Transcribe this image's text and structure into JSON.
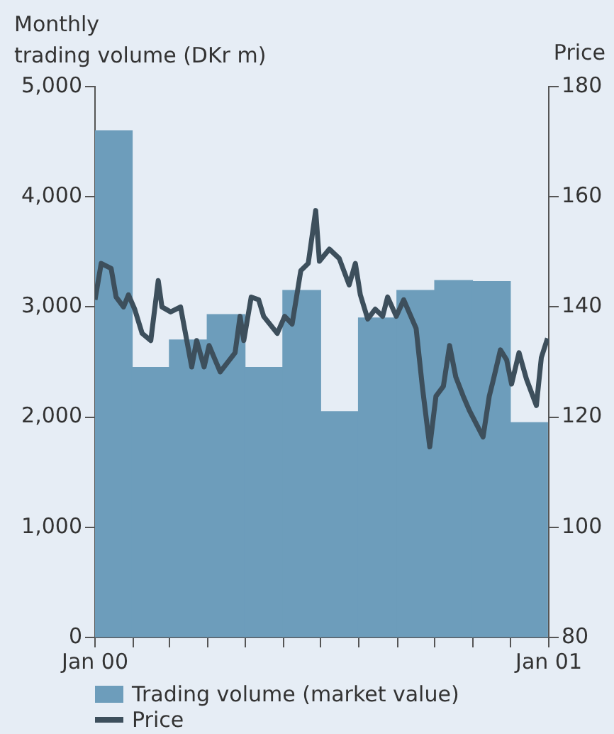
{
  "chart_data": {
    "type": "bar",
    "ylabel": "Monthly\ntrading volume (DKr m)",
    "y2label": "Price",
    "series": [
      {
        "name": "Trading volume (market value)",
        "color": "#6d9dbb",
        "x": [
          "2000-01-16",
          "2000-02-15",
          "2000-03-16",
          "2000-04-16",
          "2000-05-16",
          "2000-06-16",
          "2000-07-16",
          "2000-08-16",
          "2000-09-16",
          "2000-10-16",
          "2000-11-16",
          "2000-12-16"
        ],
        "values": [
          4600,
          2450,
          2700,
          2930,
          2450,
          3150,
          2050,
          2900,
          3150,
          3240,
          3230,
          1950
        ]
      },
      {
        "name": "Price",
        "type": "line",
        "axis": "y2",
        "color": "#3d4f5c",
        "x": [
          "2000-01-01",
          "2000-01-06",
          "2000-01-14",
          "2000-01-18",
          "2000-01-24",
          "2000-01-28",
          "2000-02-02",
          "2000-02-08",
          "2000-02-15",
          "2000-02-21",
          "2000-02-24",
          "2000-03-02",
          "2000-03-10",
          "2000-03-19",
          "2000-03-23",
          "2000-03-29",
          "2000-04-02",
          "2000-04-11",
          "2000-04-23",
          "2000-04-27",
          "2000-04-30",
          "2000-05-06",
          "2000-05-12",
          "2000-05-16",
          "2000-05-27",
          "2000-06-02",
          "2000-06-08",
          "2000-06-15",
          "2000-06-21",
          "2000-06-27",
          "2000-06-30",
          "2000-07-08",
          "2000-07-16",
          "2000-07-24",
          "2000-07-29",
          "2000-08-02",
          "2000-08-08",
          "2000-08-14",
          "2000-08-20",
          "2000-08-24",
          "2000-08-31",
          "2000-09-06",
          "2000-09-16",
          "2000-09-21",
          "2000-09-27",
          "2000-10-02",
          "2000-10-08",
          "2000-10-13",
          "2000-10-18",
          "2000-10-24",
          "2000-10-29",
          "2000-11-09",
          "2000-11-14",
          "2000-11-17",
          "2000-11-23",
          "2000-11-28",
          "2000-12-02",
          "2000-12-08",
          "2000-12-14",
          "2000-12-22",
          "2000-12-26",
          "2000-12-31"
        ],
        "values": [
          141.3,
          147.9,
          147,
          141.8,
          140,
          142.2,
          139.6,
          135.2,
          133.9,
          144.8,
          140,
          139.1,
          140,
          129.1,
          133.9,
          129.1,
          133,
          128.2,
          131.7,
          138.3,
          133.9,
          141.8,
          141.3,
          138.3,
          135.2,
          138.3,
          136.9,
          146.6,
          147.9,
          157.5,
          148.3,
          150.5,
          148.8,
          144,
          147.9,
          142.2,
          137.8,
          139.6,
          138.3,
          141.8,
          138.3,
          141.3,
          136.1,
          125.6,
          114.6,
          123.8,
          125.6,
          133,
          127.3,
          123.8,
          121.2,
          116.4,
          123.8,
          126.5,
          132.2,
          130.4,
          126,
          131.7,
          126.9,
          122.1,
          130.8,
          134.3
        ]
      }
    ],
    "xlim": [
      "2000-01-01",
      "2001-01-01"
    ],
    "xticks": [
      {
        "value": "2000-01-01",
        "label": "Jan 00"
      },
      {
        "value": "2000-02-01",
        "label": null
      },
      {
        "value": "2000-03-01",
        "label": null
      },
      {
        "value": "2000-04-01",
        "label": null
      },
      {
        "value": "2000-05-01",
        "label": null
      },
      {
        "value": "2000-06-01",
        "label": null
      },
      {
        "value": "2000-07-01",
        "label": null
      },
      {
        "value": "2000-08-01",
        "label": null
      },
      {
        "value": "2000-09-01",
        "label": null
      },
      {
        "value": "2000-10-01",
        "label": null
      },
      {
        "value": "2000-11-01",
        "label": null
      },
      {
        "value": "2000-12-01",
        "label": null
      },
      {
        "value": "2001-01-01",
        "label": "Jan 01"
      }
    ],
    "ylim": [
      0,
      5000
    ],
    "yticks": [
      {
        "value": 0,
        "label": "0"
      },
      {
        "value": 1000,
        "label": "1,000"
      },
      {
        "value": 2000,
        "label": "2,000"
      },
      {
        "value": 3000,
        "label": "3,000"
      },
      {
        "value": 4000,
        "label": "4,000"
      },
      {
        "value": 5000,
        "label": "5,000"
      }
    ],
    "y2lim": [
      80,
      180
    ],
    "y2ticks": [
      80,
      100,
      120,
      140,
      160,
      180
    ],
    "grid": false,
    "legend": "bottom"
  }
}
